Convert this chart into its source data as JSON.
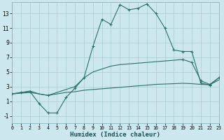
{
  "xlabel": "Humidex (Indice chaleur)",
  "bg_color": "#cce8ee",
  "grid_color": "#aaccd5",
  "line_color": "#2d7068",
  "xlim": [
    0,
    23
  ],
  "ylim": [
    -2.0,
    14.5
  ],
  "yticks": [
    -1,
    1,
    3,
    5,
    7,
    9,
    11,
    13
  ],
  "xticks": [
    0,
    1,
    2,
    3,
    4,
    5,
    6,
    7,
    8,
    9,
    10,
    11,
    12,
    13,
    14,
    15,
    16,
    17,
    18,
    19,
    20,
    21,
    22,
    23
  ],
  "line1_x": [
    0,
    1,
    2,
    3,
    4,
    5,
    6,
    7,
    8,
    9,
    10,
    11,
    12,
    13,
    14,
    15,
    16,
    17,
    18,
    19,
    20,
    21,
    22,
    23
  ],
  "line1_y": [
    2.0,
    2.1,
    2.2,
    2.0,
    1.8,
    2.0,
    2.2,
    2.3,
    2.5,
    2.6,
    2.7,
    2.8,
    2.9,
    3.0,
    3.1,
    3.2,
    3.3,
    3.35,
    3.4,
    3.45,
    3.4,
    3.3,
    3.25,
    3.9
  ],
  "line2_x": [
    0,
    1,
    2,
    3,
    4,
    5,
    6,
    7,
    8,
    9,
    10,
    11,
    12,
    13,
    14,
    15,
    16,
    17,
    18,
    19,
    20,
    21,
    22,
    23
  ],
  "line2_y": [
    2.0,
    2.2,
    2.4,
    2.0,
    1.8,
    2.2,
    2.6,
    3.0,
    4.2,
    5.0,
    5.4,
    5.8,
    6.0,
    6.1,
    6.2,
    6.3,
    6.4,
    6.5,
    6.6,
    6.7,
    6.3,
    3.8,
    3.3,
    4.2
  ],
  "line3_x": [
    0,
    1,
    2,
    3,
    4,
    5,
    6,
    7,
    8,
    9,
    10,
    11,
    12,
    13,
    14,
    15,
    16,
    17,
    18,
    19,
    20,
    21,
    22,
    23
  ],
  "line3_y": [
    2.0,
    2.2,
    2.3,
    0.7,
    -0.6,
    -0.6,
    1.5,
    2.8,
    4.2,
    8.5,
    12.2,
    11.5,
    14.2,
    13.5,
    13.7,
    14.3,
    13.0,
    11.0,
    8.0,
    7.8,
    7.8,
    3.5,
    3.2,
    4.2
  ],
  "line2_markers": [
    4,
    7,
    19,
    20,
    21,
    22,
    23
  ],
  "line1_markers": []
}
